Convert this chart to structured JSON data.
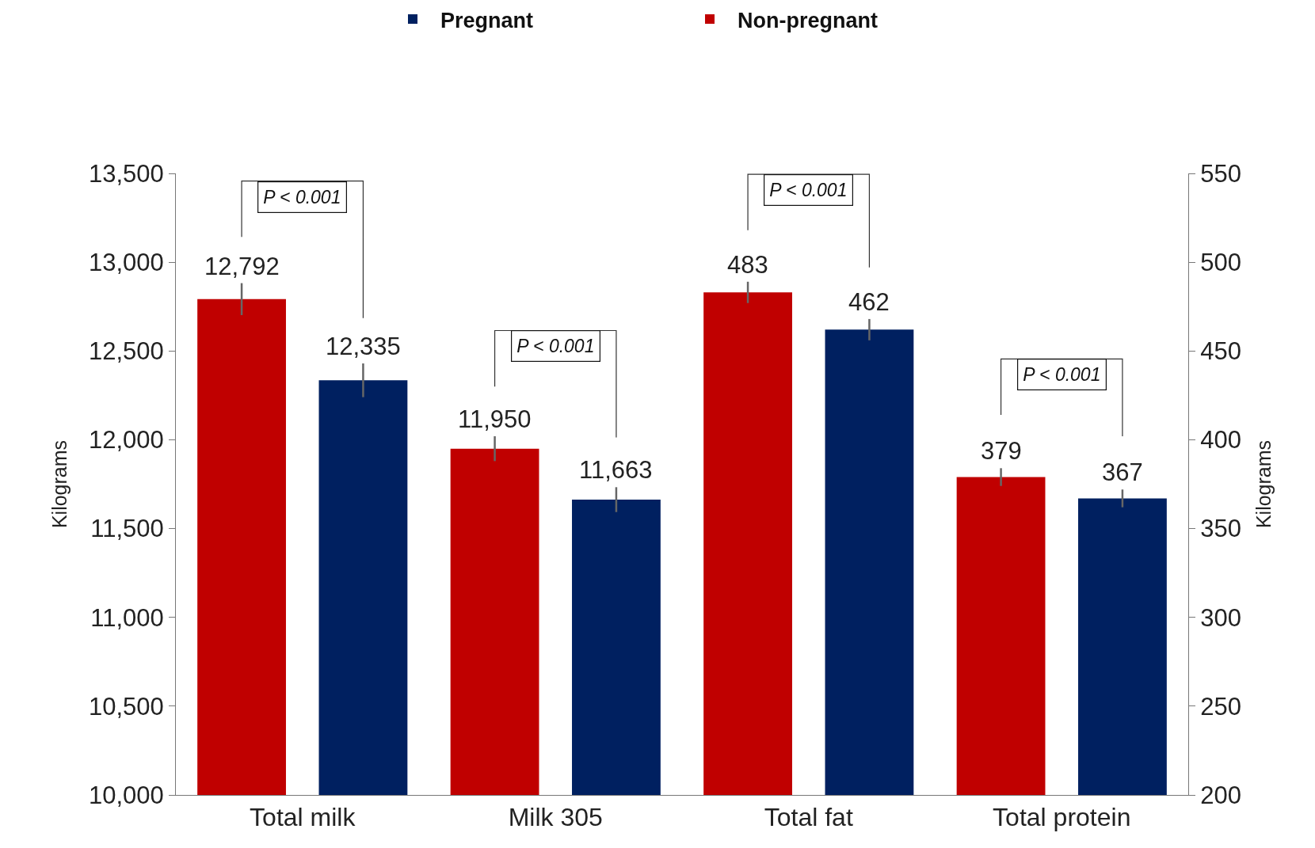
{
  "chart_data": {
    "type": "bar",
    "categories": [
      "Total milk",
      "Milk 305",
      "Total fat",
      "Total protein"
    ],
    "series": [
      {
        "name": "Non-pregnant",
        "color": "#c00000",
        "values": [
          12792,
          11950,
          null,
          null
        ],
        "errors": [
          90,
          70,
          null,
          null
        ],
        "value_labels": [
          "12,792",
          "11,950",
          null,
          null
        ]
      },
      {
        "name": "Pregnant",
        "color": "#002060",
        "values": [
          12335,
          11663,
          null,
          null
        ],
        "errors": [
          95,
          70,
          null,
          null
        ],
        "value_labels": [
          "12,335",
          "11,663",
          null,
          null
        ]
      },
      {
        "color": "#c00000",
        "axis": "y2",
        "values": [
          null,
          null,
          483,
          379
        ],
        "errors": [
          null,
          null,
          6,
          5
        ],
        "value_labels": [
          null,
          null,
          "483",
          "379"
        ]
      },
      {
        "color": "#002060",
        "axis": "y2",
        "values": [
          null,
          null,
          462,
          367
        ],
        "errors": [
          null,
          null,
          6,
          5
        ],
        "value_labels": [
          null,
          null,
          "462",
          "367"
        ]
      }
    ],
    "ylabel": "Kilograms",
    "y2label": "Kilograms",
    "ylim": [
      10000,
      13500
    ],
    "yticks": [
      {
        "value": 10000,
        "label": "10,000"
      },
      {
        "value": 10500,
        "label": "10,500"
      },
      {
        "value": 11000,
        "label": "11,000"
      },
      {
        "value": 11500,
        "label": "11,500"
      },
      {
        "value": 12000,
        "label": "12,000"
      },
      {
        "value": 12500,
        "label": "12,500"
      },
      {
        "value": 13000,
        "label": "13,000"
      },
      {
        "value": 13500,
        "label": "13,500"
      }
    ],
    "y2lim": [
      200,
      550
    ],
    "y2ticks": [
      200,
      250,
      300,
      350,
      400,
      450,
      500,
      550
    ],
    "annotations": [
      "P < 0.001",
      "P < 0.001",
      "P < 0.001",
      "P < 0.001"
    ],
    "legend": "top",
    "grid": false
  }
}
